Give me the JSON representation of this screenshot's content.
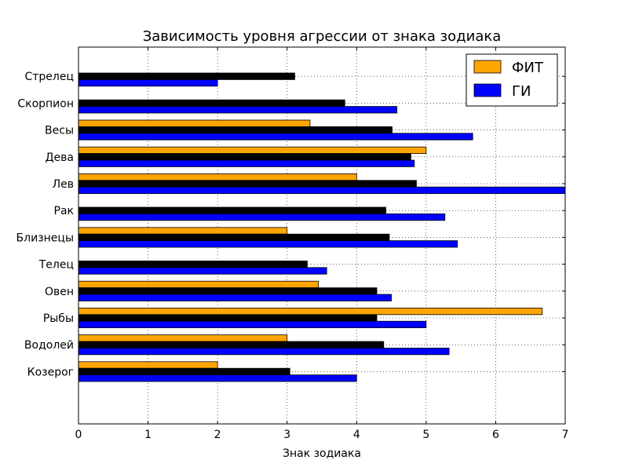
{
  "chart_data": {
    "type": "bar",
    "orientation": "horizontal",
    "title": "Зависимость уровня агрессии от знака зодиака",
    "xlabel": "Знак зодиака",
    "ylabel": "",
    "xlim": [
      0,
      7
    ],
    "xticks": [
      "0",
      "1",
      "2",
      "3",
      "4",
      "5",
      "6",
      "7"
    ],
    "grid": true,
    "legend_position": "top-right",
    "categories": [
      "Козерог",
      "Водолей",
      "Рыбы",
      "Овен",
      "Телец",
      "Близнецы",
      "Рак",
      "Лев",
      "Дева",
      "Весы",
      "Скорпион",
      "Стрелец"
    ],
    "series": [
      {
        "name": "ФИТ",
        "color": "#ffa500",
        "in_legend": true,
        "values": [
          2.0,
          3.0,
          6.67,
          3.45,
          0,
          3.0,
          0,
          4.0,
          5.0,
          3.33,
          0,
          0
        ]
      },
      {
        "name": "",
        "color": "#000000",
        "in_legend": false,
        "values": [
          3.04,
          4.39,
          4.29,
          4.29,
          3.29,
          4.47,
          4.42,
          4.86,
          4.78,
          4.51,
          3.83,
          3.11
        ]
      },
      {
        "name": "ГИ",
        "color": "#0000ff",
        "in_legend": true,
        "values": [
          4.0,
          5.33,
          5.0,
          4.5,
          3.57,
          5.45,
          5.27,
          7.0,
          4.83,
          5.67,
          4.58,
          2.0
        ]
      }
    ]
  }
}
